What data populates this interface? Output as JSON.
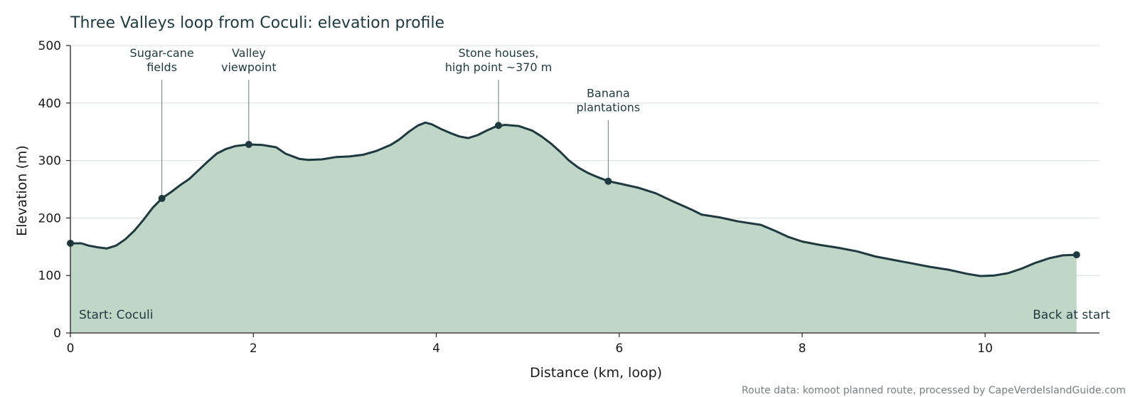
{
  "chart_data": {
    "type": "area",
    "title": "Three Valleys loop from Coculi: elevation profile",
    "xlabel": "Distance (km, loop)",
    "ylabel": "Elevation (m)",
    "xlim": [
      0,
      11.25
    ],
    "ylim": [
      0,
      500
    ],
    "xticks": [
      0,
      2,
      4,
      6,
      8,
      10
    ],
    "yticks": [
      0,
      100,
      200,
      300,
      400,
      500
    ],
    "grid": "horizontal",
    "colors": {
      "line": "#1e3a40",
      "fill": "#c0d6c6",
      "grid": "#d8e0de",
      "axis": "#222222"
    },
    "points": [
      [
        0,
        156
      ],
      [
        0.12,
        156
      ],
      [
        0.2,
        152
      ],
      [
        0.3,
        149
      ],
      [
        0.4,
        147
      ],
      [
        0.5,
        152
      ],
      [
        0.6,
        163
      ],
      [
        0.7,
        178
      ],
      [
        0.8,
        197
      ],
      [
        0.9,
        218
      ],
      [
        1.0,
        234
      ],
      [
        1.1,
        245
      ],
      [
        1.2,
        257
      ],
      [
        1.3,
        268
      ],
      [
        1.4,
        283
      ],
      [
        1.5,
        298
      ],
      [
        1.6,
        312
      ],
      [
        1.7,
        320
      ],
      [
        1.8,
        325
      ],
      [
        1.95,
        328
      ],
      [
        2.1,
        327
      ],
      [
        2.25,
        323
      ],
      [
        2.35,
        312
      ],
      [
        2.5,
        303
      ],
      [
        2.6,
        301
      ],
      [
        2.75,
        302
      ],
      [
        2.9,
        306
      ],
      [
        3.05,
        307
      ],
      [
        3.2,
        310
      ],
      [
        3.35,
        317
      ],
      [
        3.5,
        327
      ],
      [
        3.6,
        337
      ],
      [
        3.7,
        350
      ],
      [
        3.8,
        361
      ],
      [
        3.88,
        366
      ],
      [
        3.95,
        363
      ],
      [
        4.05,
        355
      ],
      [
        4.15,
        348
      ],
      [
        4.25,
        342
      ],
      [
        4.35,
        339
      ],
      [
        4.45,
        344
      ],
      [
        4.55,
        352
      ],
      [
        4.65,
        359
      ],
      [
        4.75,
        362
      ],
      [
        4.9,
        360
      ],
      [
        5.05,
        352
      ],
      [
        5.15,
        342
      ],
      [
        5.25,
        330
      ],
      [
        5.35,
        316
      ],
      [
        5.45,
        300
      ],
      [
        5.55,
        288
      ],
      [
        5.65,
        279
      ],
      [
        5.75,
        272
      ],
      [
        5.88,
        264
      ],
      [
        6.0,
        260
      ],
      [
        6.2,
        253
      ],
      [
        6.4,
        243
      ],
      [
        6.6,
        228
      ],
      [
        6.8,
        214
      ],
      [
        6.9,
        206
      ],
      [
        7.1,
        201
      ],
      [
        7.3,
        194
      ],
      [
        7.55,
        188
      ],
      [
        7.7,
        178
      ],
      [
        7.85,
        167
      ],
      [
        8.0,
        159
      ],
      [
        8.2,
        153
      ],
      [
        8.4,
        148
      ],
      [
        8.6,
        142
      ],
      [
        8.8,
        133
      ],
      [
        9.0,
        127
      ],
      [
        9.2,
        121
      ],
      [
        9.4,
        115
      ],
      [
        9.6,
        110
      ],
      [
        9.8,
        103
      ],
      [
        9.95,
        99
      ],
      [
        10.1,
        100
      ],
      [
        10.25,
        104
      ],
      [
        10.4,
        112
      ],
      [
        10.55,
        122
      ],
      [
        10.7,
        130
      ],
      [
        10.85,
        135
      ],
      [
        11.0,
        136
      ],
      [
        11.0,
        136
      ]
    ],
    "markers": [
      {
        "x": 0,
        "y": 156
      },
      {
        "x": 1.0,
        "y": 234
      },
      {
        "x": 1.95,
        "y": 328
      },
      {
        "x": 4.68,
        "y": 361
      },
      {
        "x": 5.88,
        "y": 264
      },
      {
        "x": 11.0,
        "y": 136
      }
    ],
    "annotations": [
      {
        "lines": [
          "Sugar-cane",
          "fields"
        ],
        "x": 1.0,
        "y": 234,
        "label_y": 480
      },
      {
        "lines": [
          "Valley",
          "viewpoint"
        ],
        "x": 1.95,
        "y": 328,
        "label_y": 480
      },
      {
        "lines": [
          "Stone houses,",
          "high point ~370 m"
        ],
        "x": 4.68,
        "y": 361,
        "label_y": 480
      },
      {
        "lines": [
          "Banana",
          "plantations"
        ],
        "x": 5.88,
        "y": 264,
        "label_y": 410
      }
    ],
    "corner_labels": {
      "start": "Start: Coculi",
      "end": "Back at start"
    },
    "source": "Route data: komoot planned route, processed by CapeVerdeIslandGuide.com"
  }
}
